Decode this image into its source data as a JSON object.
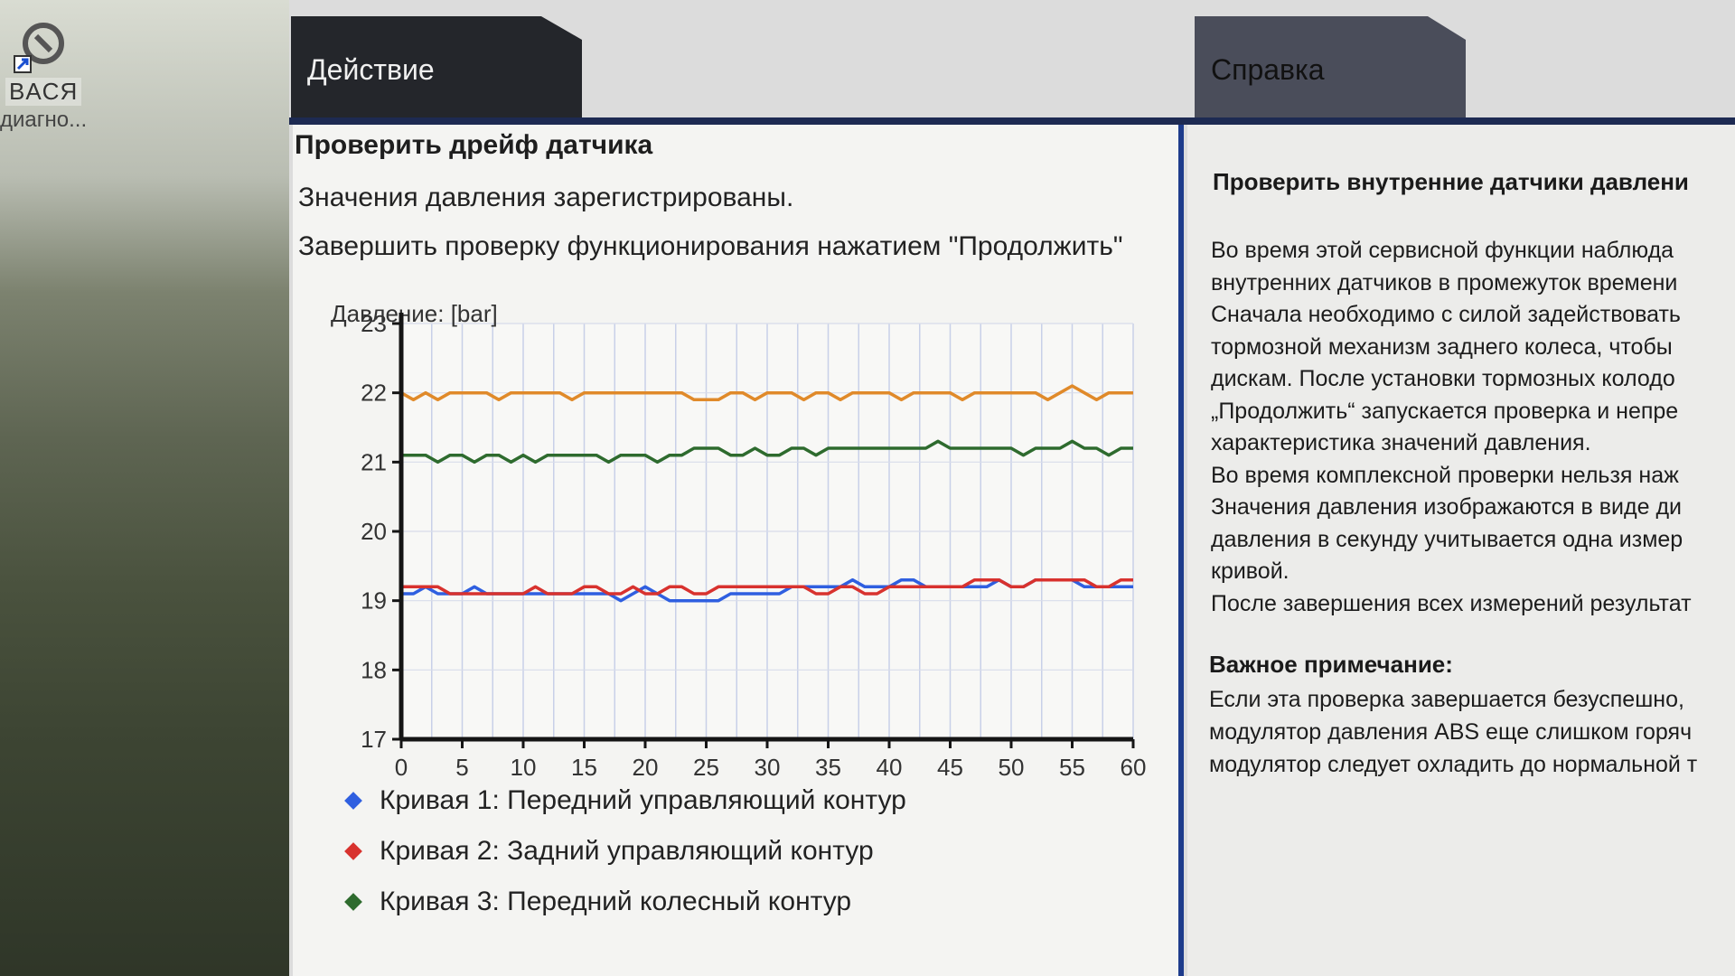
{
  "desktop": {
    "icon_label_1": "BACЯ",
    "icon_label_2": "диагно..."
  },
  "tabs": {
    "action": "Действие",
    "help": "Справка"
  },
  "left": {
    "title": "Проверить дрейф датчика",
    "line1": "Значения давления зарегистрированы.",
    "line2": "Завершить проверку функционирования нажатием \"Продолжить\""
  },
  "chart_data": {
    "type": "line",
    "ylabel": "Давление: [bar]",
    "xlim": [
      0,
      60
    ],
    "ylim": [
      17,
      23
    ],
    "xticks": [
      0,
      5,
      10,
      15,
      20,
      25,
      30,
      35,
      40,
      45,
      50,
      55,
      60
    ],
    "yticks": [
      17,
      18,
      19,
      20,
      21,
      22,
      23
    ],
    "grid": true,
    "x": [
      0,
      1,
      2,
      3,
      4,
      5,
      6,
      7,
      8,
      9,
      10,
      11,
      12,
      13,
      14,
      15,
      16,
      17,
      18,
      19,
      20,
      21,
      22,
      23,
      24,
      25,
      26,
      27,
      28,
      29,
      30,
      31,
      32,
      33,
      34,
      35,
      36,
      37,
      38,
      39,
      40,
      41,
      42,
      43,
      44,
      45,
      46,
      47,
      48,
      49,
      50,
      51,
      52,
      53,
      54,
      55,
      56,
      57,
      58,
      59,
      60
    ],
    "series": [
      {
        "name": "Кривая 1: Передний управляющий контур",
        "color": "#2f5fe0",
        "values": [
          19.1,
          19.1,
          19.2,
          19.1,
          19.1,
          19.1,
          19.2,
          19.1,
          19.1,
          19.1,
          19.1,
          19.1,
          19.1,
          19.1,
          19.1,
          19.1,
          19.1,
          19.1,
          19.0,
          19.1,
          19.2,
          19.1,
          19.0,
          19.0,
          19.0,
          19.0,
          19.0,
          19.1,
          19.1,
          19.1,
          19.1,
          19.1,
          19.2,
          19.2,
          19.2,
          19.2,
          19.2,
          19.3,
          19.2,
          19.2,
          19.2,
          19.3,
          19.3,
          19.2,
          19.2,
          19.2,
          19.2,
          19.2,
          19.2,
          19.3,
          19.2,
          19.2,
          19.3,
          19.3,
          19.3,
          19.3,
          19.2,
          19.2,
          19.2,
          19.2,
          19.2
        ]
      },
      {
        "name": "Кривая 2: Задний управляющий контур",
        "color": "#d8322e",
        "values": [
          19.2,
          19.2,
          19.2,
          19.2,
          19.1,
          19.1,
          19.1,
          19.1,
          19.1,
          19.1,
          19.1,
          19.2,
          19.1,
          19.1,
          19.1,
          19.2,
          19.2,
          19.1,
          19.1,
          19.2,
          19.1,
          19.1,
          19.2,
          19.2,
          19.1,
          19.1,
          19.2,
          19.2,
          19.2,
          19.2,
          19.2,
          19.2,
          19.2,
          19.2,
          19.1,
          19.1,
          19.2,
          19.2,
          19.1,
          19.1,
          19.2,
          19.2,
          19.2,
          19.2,
          19.2,
          19.2,
          19.2,
          19.3,
          19.3,
          19.3,
          19.2,
          19.2,
          19.3,
          19.3,
          19.3,
          19.3,
          19.3,
          19.2,
          19.2,
          19.3,
          19.3
        ]
      },
      {
        "name": "Кривая 3: Передний колесный контур",
        "color": "#2e6b2e",
        "values": [
          21.1,
          21.1,
          21.1,
          21.0,
          21.1,
          21.1,
          21.0,
          21.1,
          21.1,
          21.0,
          21.1,
          21.0,
          21.1,
          21.1,
          21.1,
          21.1,
          21.1,
          21.0,
          21.1,
          21.1,
          21.1,
          21.0,
          21.1,
          21.1,
          21.2,
          21.2,
          21.2,
          21.1,
          21.1,
          21.2,
          21.1,
          21.1,
          21.2,
          21.2,
          21.1,
          21.2,
          21.2,
          21.2,
          21.2,
          21.2,
          21.2,
          21.2,
          21.2,
          21.2,
          21.3,
          21.2,
          21.2,
          21.2,
          21.2,
          21.2,
          21.2,
          21.1,
          21.2,
          21.2,
          21.2,
          21.3,
          21.2,
          21.2,
          21.1,
          21.2,
          21.2
        ]
      },
      {
        "name": "",
        "color": "#e08a2a",
        "values": [
          22.0,
          21.9,
          22.0,
          21.9,
          22.0,
          22.0,
          22.0,
          22.0,
          21.9,
          22.0,
          22.0,
          22.0,
          22.0,
          22.0,
          21.9,
          22.0,
          22.0,
          22.0,
          22.0,
          22.0,
          22.0,
          22.0,
          22.0,
          22.0,
          21.9,
          21.9,
          21.9,
          22.0,
          22.0,
          21.9,
          22.0,
          22.0,
          22.0,
          21.9,
          22.0,
          22.0,
          21.9,
          22.0,
          22.0,
          22.0,
          22.0,
          21.9,
          22.0,
          22.0,
          22.0,
          22.0,
          21.9,
          22.0,
          22.0,
          22.0,
          22.0,
          22.0,
          22.0,
          21.9,
          22.0,
          22.1,
          22.0,
          21.9,
          22.0,
          22.0,
          22.0
        ]
      }
    ],
    "legend": [
      {
        "label": "Кривая 1: Передний управляющий контур",
        "color": "#2f5fe0"
      },
      {
        "label": "Кривая 2: Задний управляющий контур",
        "color": "#d8322e"
      },
      {
        "label": "Кривая 3: Передний колесный контур",
        "color": "#2e6b2e"
      }
    ]
  },
  "help": {
    "heading": "Проверить внутренние датчики давлени",
    "lines": [
      "Во время этой сервисной функции наблюда",
      "внутренних датчиков в промежуток времени",
      "Сначала необходимо с силой задействовать",
      "тормозной механизм заднего колеса, чтобы",
      "дискам. После установки тормозных колодо",
      "„Продолжить“ запускается проверка и непре",
      "характеристика значений давления.",
      "Во время комплексной проверки нельзя наж",
      "Значения давления изображаются в виде ди",
      "давления в секунду учитывается одна измер",
      "кривой.",
      "После завершения всех измерений результат"
    ],
    "note_heading": "Важное примечание:",
    "note_lines": [
      "Если эта проверка завершается безуспешно,",
      "модулятор давления ABS еще слишком горяч",
      "модулятор следует охладить до нормальной т"
    ]
  }
}
